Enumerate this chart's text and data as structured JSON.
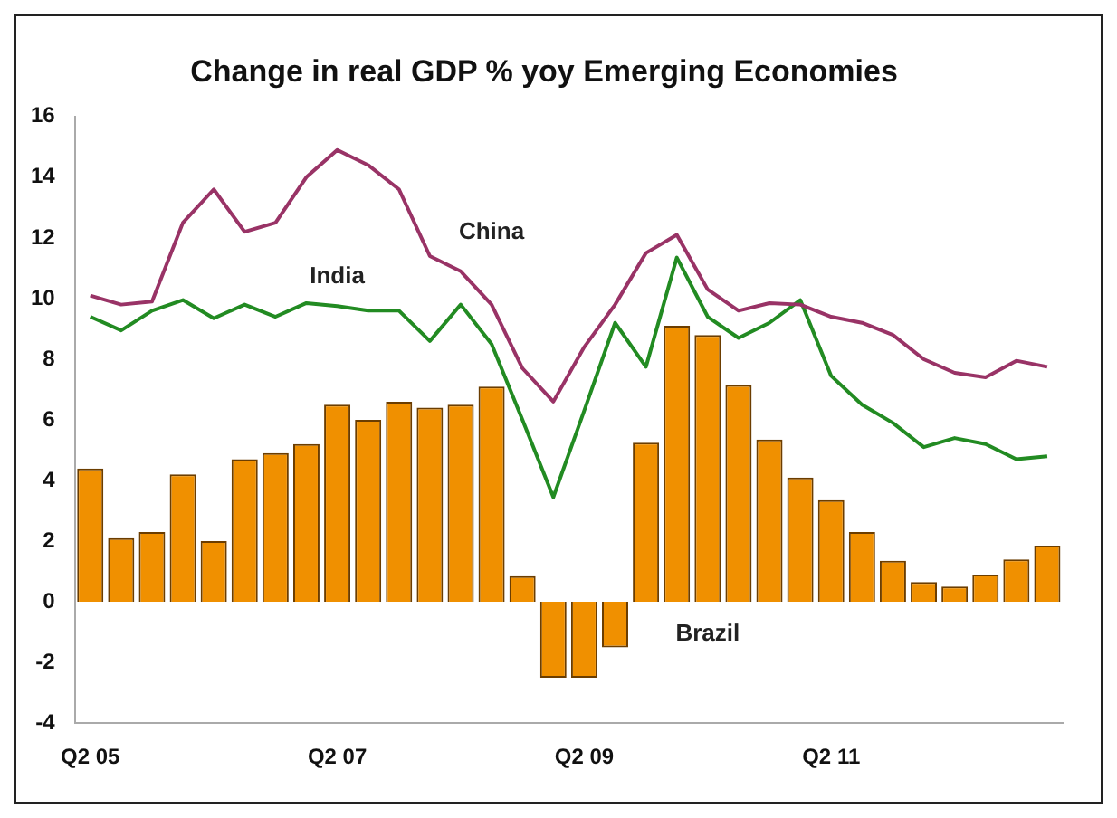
{
  "chart_data": {
    "type": "bar",
    "title": "Change in real GDP % yoy Emerging Economies",
    "categories": [
      "Q2 05",
      null,
      null,
      null,
      null,
      null,
      null,
      null,
      "Q2 07",
      null,
      null,
      null,
      null,
      null,
      null,
      null,
      "Q2 09",
      null,
      null,
      null,
      null,
      null,
      null,
      null,
      "Q2 11",
      null,
      null,
      null,
      null,
      null,
      null,
      null
    ],
    "series": [
      {
        "name": "Brazil",
        "color": "#f09000",
        "values": [
          4.4,
          2.1,
          2.3,
          4.2,
          2.0,
          4.7,
          4.9,
          5.2,
          6.5,
          6.0,
          6.6,
          6.4,
          6.5,
          7.1,
          0.85,
          -2.5,
          -2.5,
          -1.5,
          5.25,
          9.1,
          8.8,
          7.15,
          5.35,
          4.1,
          3.35,
          2.3,
          1.35,
          0.65,
          0.5,
          0.9,
          1.4,
          1.85
        ]
      },
      {
        "name": "China",
        "type": "line",
        "color": "#993366",
        "values": [
          10.1,
          9.8,
          9.9,
          12.5,
          13.6,
          12.2,
          12.5,
          14.0,
          14.9,
          14.4,
          13.6,
          11.4,
          10.9,
          9.8,
          7.7,
          6.6,
          8.4,
          9.8,
          11.5,
          12.1,
          10.3,
          9.6,
          9.85,
          9.8,
          9.4,
          9.2,
          8.8,
          8.0,
          7.55,
          7.4,
          7.95,
          7.75
        ]
      },
      {
        "name": "India",
        "type": "line",
        "color": "#228b22",
        "values": [
          9.4,
          8.95,
          9.6,
          9.95,
          9.35,
          9.8,
          9.4,
          9.85,
          9.75,
          9.6,
          9.6,
          8.6,
          9.8,
          8.5,
          6.0,
          3.45,
          6.3,
          9.2,
          7.75,
          11.35,
          9.4,
          8.7,
          9.2,
          9.95,
          7.45,
          6.5,
          5.9,
          5.1,
          5.4,
          5.2,
          4.7,
          4.8
        ]
      }
    ],
    "ylim": [
      -4,
      16
    ],
    "yticks": [
      -4,
      -2,
      0,
      2,
      4,
      6,
      8,
      10,
      12,
      14,
      16
    ],
    "grid": false,
    "legend": false,
    "marker": "none",
    "line_style": "solid"
  }
}
